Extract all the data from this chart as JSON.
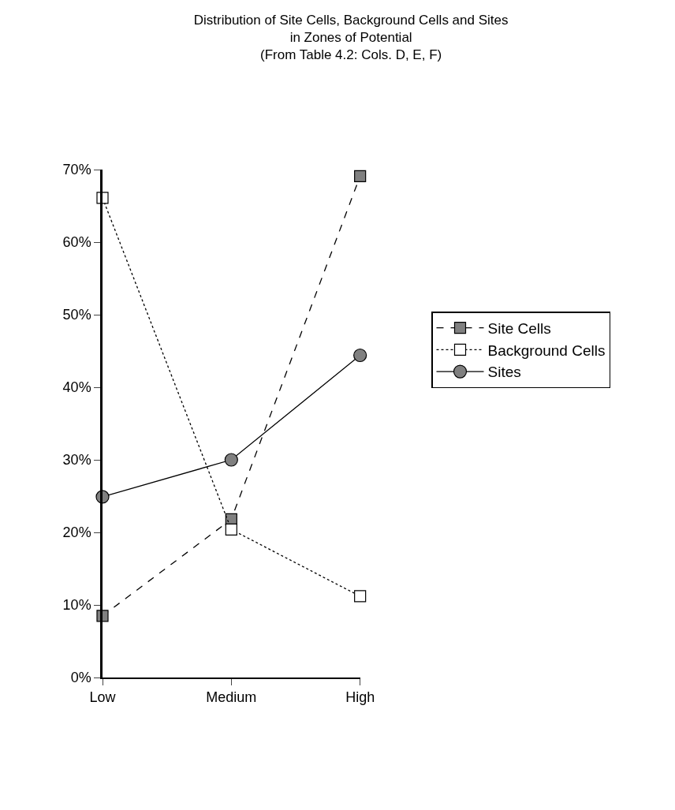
{
  "chart_data": {
    "type": "line",
    "title": "Distribution of Site Cells, Background Cells and Sites\nin Zones of Potential\n(From Table 4.2: Cols. D, E, F)",
    "categories": [
      "Low",
      "Medium",
      "High"
    ],
    "series": [
      {
        "name": "Site Cells",
        "color": "#808080",
        "values": [
          8.5,
          21.8,
          69.1
        ],
        "marker": "square",
        "line_style": "dashed"
      },
      {
        "name": "Background Cells",
        "color": "#ffffff",
        "values": [
          66.1,
          20.4,
          11.2
        ],
        "marker": "square",
        "line_style": "dotted"
      },
      {
        "name": "Sites",
        "color": "#808080",
        "values": [
          24.9,
          30,
          44.4
        ],
        "marker": "circle",
        "line_style": "solid"
      }
    ],
    "ylim": [
      0,
      70
    ],
    "yticks": [
      {
        "value": 0,
        "label": "0%"
      },
      {
        "value": 10,
        "label": "10%"
      },
      {
        "value": 20,
        "label": "20%"
      },
      {
        "value": 30,
        "label": "30%"
      },
      {
        "value": 40,
        "label": "40%"
      },
      {
        "value": 50,
        "label": "50%"
      },
      {
        "value": 60,
        "label": "60%"
      },
      {
        "value": 70,
        "label": "70%"
      }
    ],
    "legend": "right"
  }
}
